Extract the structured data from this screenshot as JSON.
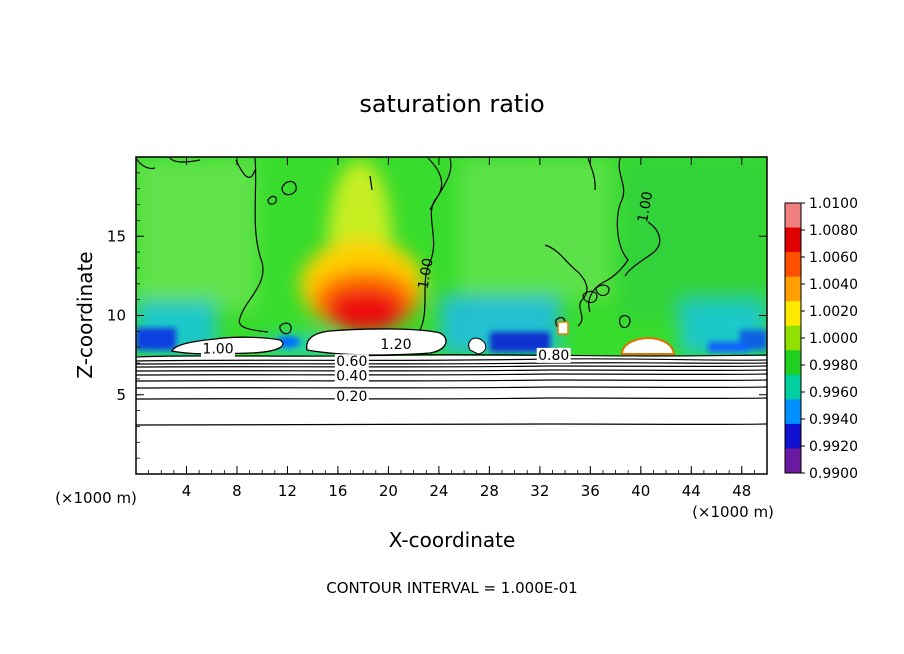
{
  "chart_data": {
    "type": "heatmap",
    "title": "saturation ratio",
    "xlabel": "X-coordinate",
    "ylabel": "Z-coordinate",
    "x_unit_left": "(×1000 m)",
    "x_unit_right": "(×1000 m)",
    "xlim": [
      0,
      50
    ],
    "ylim": [
      0,
      20
    ],
    "x_ticks": [
      4,
      8,
      12,
      16,
      20,
      24,
      28,
      32,
      36,
      40,
      44,
      48
    ],
    "y_ticks": [
      5,
      10,
      15
    ],
    "footer": "CONTOUR INTERVAL = 1.000E-01",
    "colorbar": {
      "levels": [
        "1.0100",
        "1.0080",
        "1.0060",
        "1.0040",
        "1.0020",
        "1.0000",
        "0.9980",
        "0.9960",
        "0.9940",
        "0.9920",
        "0.9900"
      ],
      "colors": [
        "#f08080",
        "#e00000",
        "#ff5000",
        "#ffa000",
        "#ffe800",
        "#90e000",
        "#20d020",
        "#00d0a0",
        "#0090ff",
        "#1010d0",
        "#6a1aa0"
      ]
    },
    "contour_labels": [
      {
        "text": "1.00",
        "x": 6.5,
        "z": 7.6
      },
      {
        "text": "1.20",
        "x": 20.6,
        "z": 7.9
      },
      {
        "text": "0.60",
        "x": 17.1,
        "z": 6.8
      },
      {
        "text": "0.40",
        "x": 17.1,
        "z": 5.9
      },
      {
        "text": "0.20",
        "x": 17.1,
        "z": 4.6
      },
      {
        "text": "0.80",
        "x": 33.1,
        "z": 7.2
      },
      {
        "text": "1.00",
        "x": 23.3,
        "z": 12.6
      },
      {
        "text": "1.00",
        "x": 40.7,
        "z": 16.8
      }
    ]
  }
}
